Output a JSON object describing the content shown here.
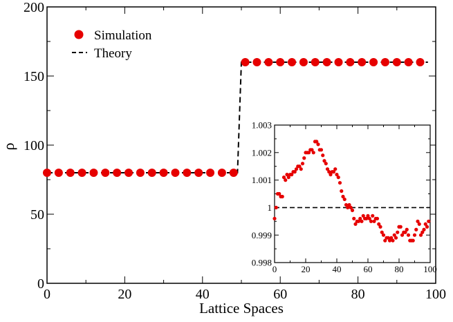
{
  "colors": {
    "marker": "#e60000",
    "axis": "#000000",
    "background": "#ffffff"
  },
  "chart_data": [
    {
      "type": "scatter",
      "title": "",
      "xlabel": "Lattice Spaces",
      "ylabel": "ρ",
      "xlim": [
        0,
        100
      ],
      "ylim": [
        0,
        200
      ],
      "xticks": [
        0,
        20,
        40,
        60,
        80,
        100
      ],
      "yticks": [
        0,
        50,
        100,
        150,
        200
      ],
      "xtick_labels": [
        "0",
        "20",
        "40",
        "60",
        "80",
        "100"
      ],
      "ytick_labels": [
        "0",
        "50",
        "100",
        "150",
        "200"
      ],
      "grid": false,
      "legend": {
        "position": "top-left",
        "entries": [
          "Simulation",
          "Theory"
        ]
      },
      "series": [
        {
          "name": "Simulation",
          "marker": "circle",
          "x": [
            0,
            3,
            6,
            9,
            12,
            15,
            18,
            21,
            24,
            27,
            30,
            33,
            36,
            39,
            42,
            45,
            48,
            51,
            54,
            57,
            60,
            63,
            66,
            69,
            72,
            75,
            78,
            81,
            84,
            87,
            90,
            93,
            96
          ],
          "y": [
            80,
            80,
            80,
            80,
            80,
            80,
            80,
            80,
            80,
            80,
            80,
            80,
            80,
            80,
            80,
            80,
            80,
            160,
            160,
            160,
            160,
            160,
            160,
            160,
            160,
            160,
            160,
            160,
            160,
            160,
            160,
            160,
            160
          ]
        },
        {
          "name": "Theory",
          "line": "dashed",
          "x": [
            0,
            49,
            50,
            98
          ],
          "y": [
            80,
            80,
            160,
            160
          ]
        }
      ]
    },
    {
      "type": "scatter",
      "title": "",
      "xlabel": "",
      "ylabel": "",
      "xlim": [
        0,
        100
      ],
      "ylim": [
        0.998,
        1.003
      ],
      "xticks": [
        0,
        20,
        40,
        60,
        80,
        100
      ],
      "yticks": [
        0.998,
        0.999,
        1,
        1.001,
        1.002,
        1.003
      ],
      "xtick_labels": [
        "0",
        "20",
        "40",
        "60",
        "80",
        "100"
      ],
      "ytick_labels": [
        "0.998",
        "0.999",
        "1",
        "1.001",
        "1.002",
        "1.003"
      ],
      "grid": false,
      "series": [
        {
          "marker": "circle",
          "x": [
            0,
            1,
            2,
            3,
            4,
            5,
            6,
            7,
            8,
            9,
            10,
            11,
            12,
            13,
            14,
            15,
            16,
            17,
            18,
            19,
            20,
            21,
            22,
            23,
            24,
            25,
            26,
            27,
            28,
            29,
            30,
            31,
            32,
            33,
            34,
            35,
            36,
            37,
            38,
            39,
            40,
            41,
            42,
            43,
            44,
            45,
            46,
            47,
            48,
            49,
            50,
            51,
            52,
            53,
            54,
            55,
            56,
            57,
            58,
            59,
            60,
            61,
            62,
            63,
            64,
            65,
            66,
            67,
            68,
            69,
            70,
            71,
            72,
            73,
            74,
            75,
            76,
            77,
            78,
            79,
            80,
            81,
            82,
            83,
            84,
            85,
            86,
            87,
            88,
            89,
            90,
            91,
            92,
            93,
            94,
            95,
            96,
            97,
            98,
            99
          ],
          "y": [
            0.9996,
            1.0,
            1.0005,
            1.0005,
            1.0004,
            1.0004,
            1.0011,
            1.001,
            1.0012,
            1.0011,
            1.0012,
            1.0012,
            1.0013,
            1.0013,
            1.0014,
            1.0015,
            1.0015,
            1.0014,
            1.0016,
            1.0018,
            1.002,
            1.002,
            1.002,
            1.0021,
            1.0021,
            1.002,
            1.0024,
            1.0024,
            1.0023,
            1.0021,
            1.0021,
            1.0019,
            1.0017,
            1.0016,
            1.0014,
            1.0013,
            1.0012,
            1.0013,
            1.0013,
            1.0014,
            1.0012,
            1.0011,
            1.0009,
            1.0006,
            1.0004,
            1.0003,
            1.0001,
            1.0,
            1.0001,
            1.0,
            0.9999,
            0.9996,
            0.9994,
            0.9995,
            0.9995,
            0.9996,
            0.9995,
            0.9997,
            0.9996,
            0.9996,
            0.9997,
            0.9996,
            0.9995,
            0.9997,
            0.9995,
            0.9996,
            0.9996,
            0.9994,
            0.9993,
            0.9991,
            0.999,
            0.9988,
            0.9989,
            0.9989,
            0.9988,
            0.9989,
            0.9988,
            0.999,
            0.9989,
            0.9991,
            0.9993,
            0.9993,
            0.999,
            0.9991,
            0.9991,
            0.9992,
            0.999,
            0.9988,
            0.9988,
            0.9988,
            0.999,
            0.9992,
            0.9995,
            0.9994,
            0.999,
            0.9991,
            0.9992,
            0.9994,
            0.9993,
            0.9995
          ]
        },
        {
          "line": "dashed",
          "x": [
            0,
            100
          ],
          "y": [
            1,
            1
          ]
        }
      ]
    }
  ]
}
